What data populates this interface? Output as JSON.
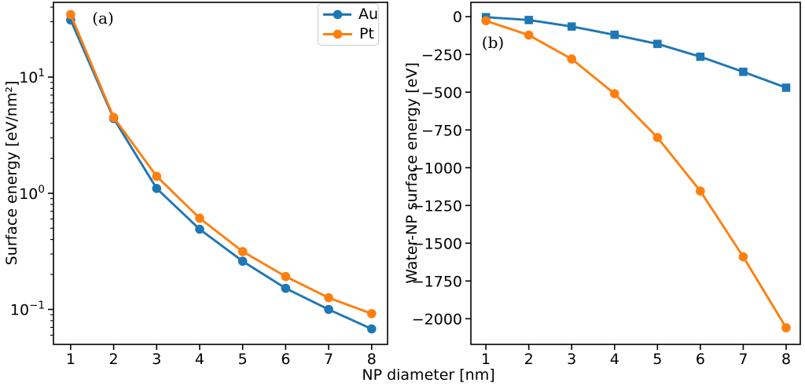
{
  "shared": {
    "xlabel": "NP diameter [nm]",
    "background": "#ffffff",
    "frame_color": "#000000",
    "legend_border_color": "#cccccc"
  },
  "chart_data": [
    {
      "type": "line",
      "panel_label": "(a)",
      "ylabel": "Surface energy [eV/nm²]",
      "xlabel": "NP diameter [nm]",
      "yscale": "log",
      "grid": false,
      "legend_position": "upper right",
      "x": [
        1,
        2,
        3,
        4,
        5,
        6,
        7,
        8
      ],
      "x_ticks": [
        1,
        2,
        3,
        4,
        5,
        6,
        7,
        8
      ],
      "xlim": [
        0.6,
        8.37
      ],
      "ylim": [
        0.05,
        44
      ],
      "y_ticks": [
        10,
        1,
        0.1
      ],
      "y_tick_labels": [
        "10^1",
        "10^0",
        "10^−1"
      ],
      "series": [
        {
          "name": "Au",
          "color": "#1f77b4",
          "marker": "circle",
          "values": [
            31,
            4.4,
            1.1,
            0.49,
            0.26,
            0.152,
            0.1,
            0.068
          ]
        },
        {
          "name": "Pt",
          "color": "#ff7f0e",
          "marker": "circle",
          "values": [
            34.5,
            4.5,
            1.4,
            0.61,
            0.315,
            0.192,
            0.126,
            0.092
          ]
        }
      ]
    },
    {
      "type": "line",
      "panel_label": "(b)",
      "ylabel": "Water-NP surface energy [eV]",
      "xlabel": "NP diameter [nm]",
      "yscale": "linear",
      "grid": false,
      "legend_position": "none",
      "x": [
        1,
        2,
        3,
        4,
        5,
        6,
        7,
        8
      ],
      "x_ticks": [
        1,
        2,
        3,
        4,
        5,
        6,
        7,
        8
      ],
      "xlim": [
        0.65,
        8.33
      ],
      "ylim": [
        -2170,
        95
      ],
      "y_ticks": [
        0,
        -250,
        -500,
        -750,
        -1000,
        -1250,
        -1500,
        -1750,
        -2000
      ],
      "y_tick_labels": [
        "0",
        "−250",
        "−500",
        "−750",
        "−1000",
        "−1250",
        "−1500",
        "−1750",
        "−2000"
      ],
      "series": [
        {
          "name": "Au",
          "color": "#1f77b4",
          "marker": "square",
          "values": [
            -3,
            -22,
            -65,
            -120,
            -180,
            -265,
            -365,
            -470
          ]
        },
        {
          "name": "Pt",
          "color": "#ff7f0e",
          "marker": "circle",
          "values": [
            -27,
            -122,
            -280,
            -510,
            -800,
            -1155,
            -1590,
            -2060
          ]
        }
      ]
    }
  ]
}
